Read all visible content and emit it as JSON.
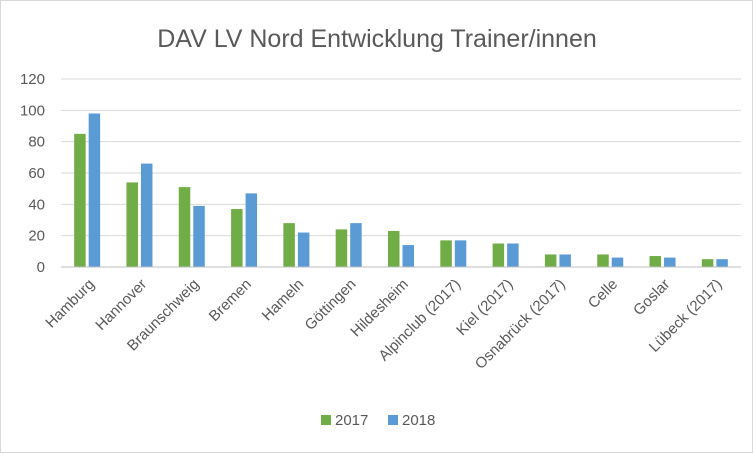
{
  "chart_data": {
    "type": "bar",
    "title": "DAV LV Nord Entwicklung Trainer/innen",
    "xlabel": "",
    "ylabel": "",
    "ylim": [
      0,
      120
    ],
    "yticks": [
      "0",
      "20",
      "40",
      "60",
      "80",
      "100",
      "120"
    ],
    "grid": true,
    "legend_position": "bottom",
    "categories": [
      "Hamburg",
      "Hannover",
      "Braunschweig",
      "Bremen",
      "Hameln",
      "Göttingen",
      "Hildesheim",
      "Alpinclub (2017)",
      "Kiel (2017)",
      "Osnabrück (2017)",
      "Celle",
      "Goslar",
      "Lübeck (2017)"
    ],
    "series": [
      {
        "name": "2017",
        "color": "#70ad47",
        "values": [
          85,
          54,
          51,
          37,
          28,
          24,
          23,
          17,
          15,
          8,
          8,
          7,
          5
        ]
      },
      {
        "name": "2018",
        "color": "#5b9bd5",
        "values": [
          98,
          66,
          39,
          47,
          22,
          28,
          14,
          17,
          15,
          8,
          6,
          6,
          5
        ]
      }
    ]
  }
}
